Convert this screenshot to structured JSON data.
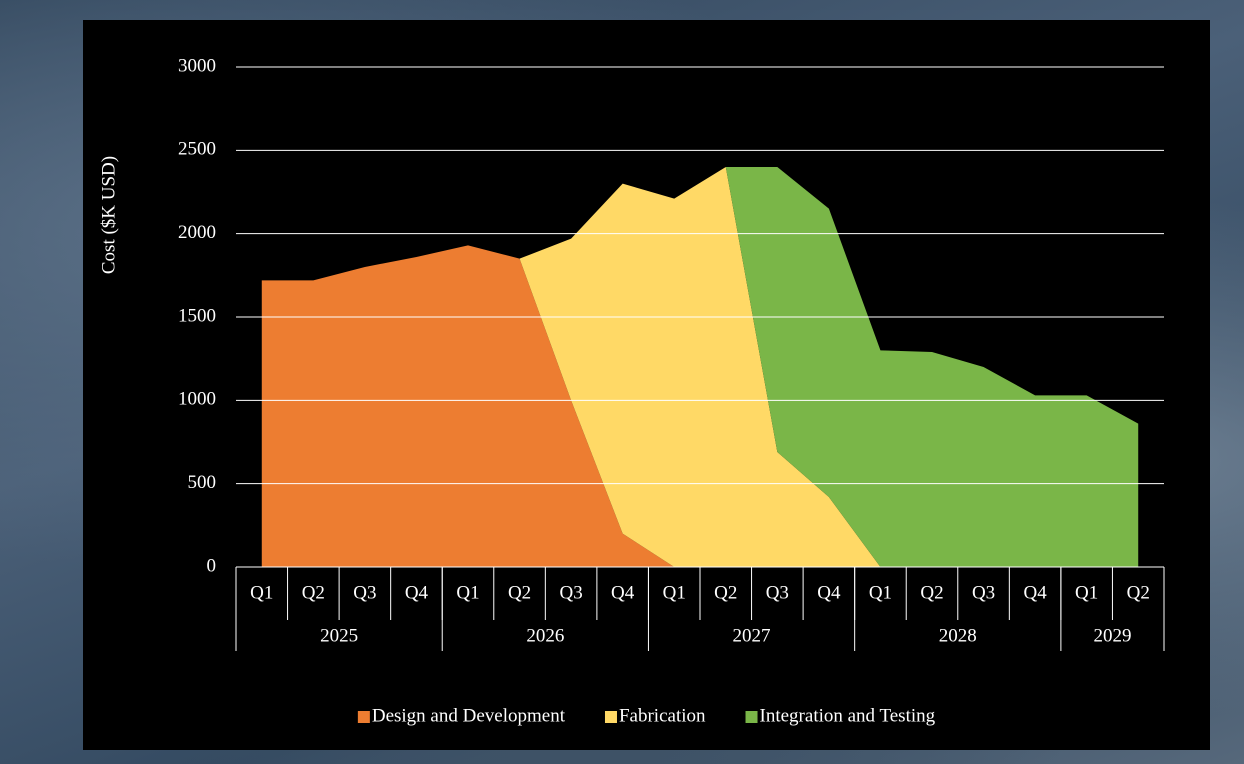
{
  "chart_data": {
    "type": "stacked_area",
    "y_label": "Cost ($K USD)",
    "categories": [
      "Q1",
      "Q2",
      "Q3",
      "Q4",
      "Q1",
      "Q2",
      "Q3",
      "Q4",
      "Q1",
      "Q2",
      "Q3",
      "Q4",
      "Q1",
      "Q2",
      "Q3",
      "Q4",
      "Q1",
      "Q2"
    ],
    "category_groups": [
      {
        "label": "2025",
        "span": 4
      },
      {
        "label": "2026",
        "span": 4
      },
      {
        "label": "2027",
        "span": 4
      },
      {
        "label": "2028",
        "span": 4
      },
      {
        "label": "2029",
        "span": 2
      }
    ],
    "series": [
      {
        "name": "Design and Development",
        "color": "#ed7d31",
        "values": [
          1720,
          1720,
          1800,
          1860,
          1930,
          1850,
          1000,
          200,
          0,
          0,
          0,
          0,
          0,
          0,
          0,
          0,
          0,
          0
        ]
      },
      {
        "name": "Fabrication",
        "color": "#ffd966",
        "values": [
          0,
          0,
          0,
          0,
          0,
          0,
          970,
          2100,
          2210,
          2400,
          690,
          420,
          0,
          0,
          0,
          0,
          0,
          0
        ]
      },
      {
        "name": "Integration and Testing",
        "color": "#7ab648",
        "values": [
          0,
          0,
          0,
          0,
          0,
          0,
          0,
          0,
          0,
          0,
          1710,
          1730,
          1300,
          1290,
          1200,
          1030,
          1030,
          860
        ]
      }
    ],
    "ylim": [
      0,
      3000
    ],
    "yticks": [
      0,
      500,
      1000,
      1500,
      2000,
      2500,
      3000
    ],
    "grid": true,
    "legend": "bottom"
  }
}
